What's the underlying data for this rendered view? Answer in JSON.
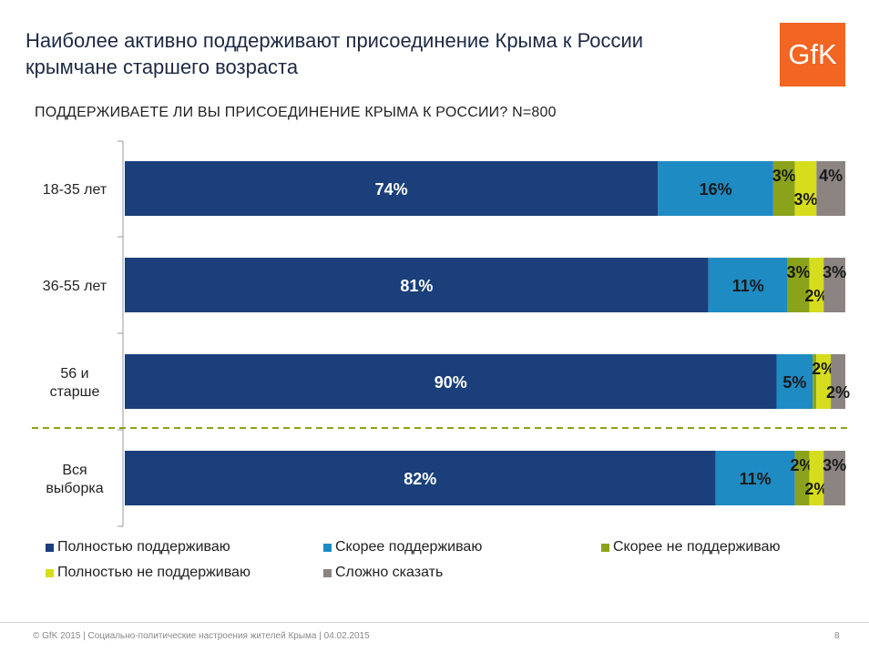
{
  "header": {
    "title_line1": "Наиболее активно поддерживают присоединение Крыма к России",
    "title_line2": "крымчане  старшего возраста",
    "logo_text": "GfK",
    "question": "ПОДДЕРЖИВАЕТЕ ЛИ ВЫ ПРИСОЕДИНЕНИЕ КРЫМА К РОССИИ? N=800"
  },
  "chart_data": {
    "type": "bar",
    "orientation": "horizontal",
    "stacked": true,
    "percent_stacked": true,
    "categories": [
      [
        "18-35 лет"
      ],
      [
        "36-55 лет"
      ],
      [
        "56 и",
        "старше"
      ],
      [
        "Вся",
        "выборка"
      ]
    ],
    "series": [
      {
        "name": "Полностью поддерживаю",
        "color": "#1a3f7a",
        "label_color": "#ffffff",
        "values": [
          74,
          81,
          90,
          82
        ]
      },
      {
        "name": "Скорее поддерживаю",
        "color": "#1e8bc3",
        "label_color": "#1a1a1a",
        "values": [
          16,
          11,
          5,
          11
        ]
      },
      {
        "name": "Скорее не поддерживаю",
        "color": "#8aa31a",
        "label_color": "#1a1a1a",
        "values": [
          3,
          3,
          0.5,
          2
        ]
      },
      {
        "name": "Полностью не поддерживаю",
        "color": "#d6dd1c",
        "label_color": "#1a1a1a",
        "values": [
          3,
          2,
          2,
          2
        ]
      },
      {
        "name": "Сложно сказать",
        "color": "#8c8480",
        "label_color": "#1a1a1a",
        "values": [
          4,
          3,
          2,
          3
        ]
      }
    ],
    "data_labels": [
      [
        "74%",
        "16%",
        "3%",
        "3%",
        "4%"
      ],
      [
        "81%",
        "11%",
        "3%",
        "2%",
        "3%"
      ],
      [
        "90%",
        "5%",
        "",
        "2%",
        "2%"
      ],
      [
        "82%",
        "11%",
        "2%",
        "2%",
        "3%"
      ]
    ],
    "separator_before_category": 3,
    "xlim": [
      0,
      100
    ],
    "legend_position": "bottom"
  },
  "footer": {
    "text": "© GfK 2015 | Социально-политические настроения жителей Крыма | 04.02.2015",
    "page": "8"
  }
}
